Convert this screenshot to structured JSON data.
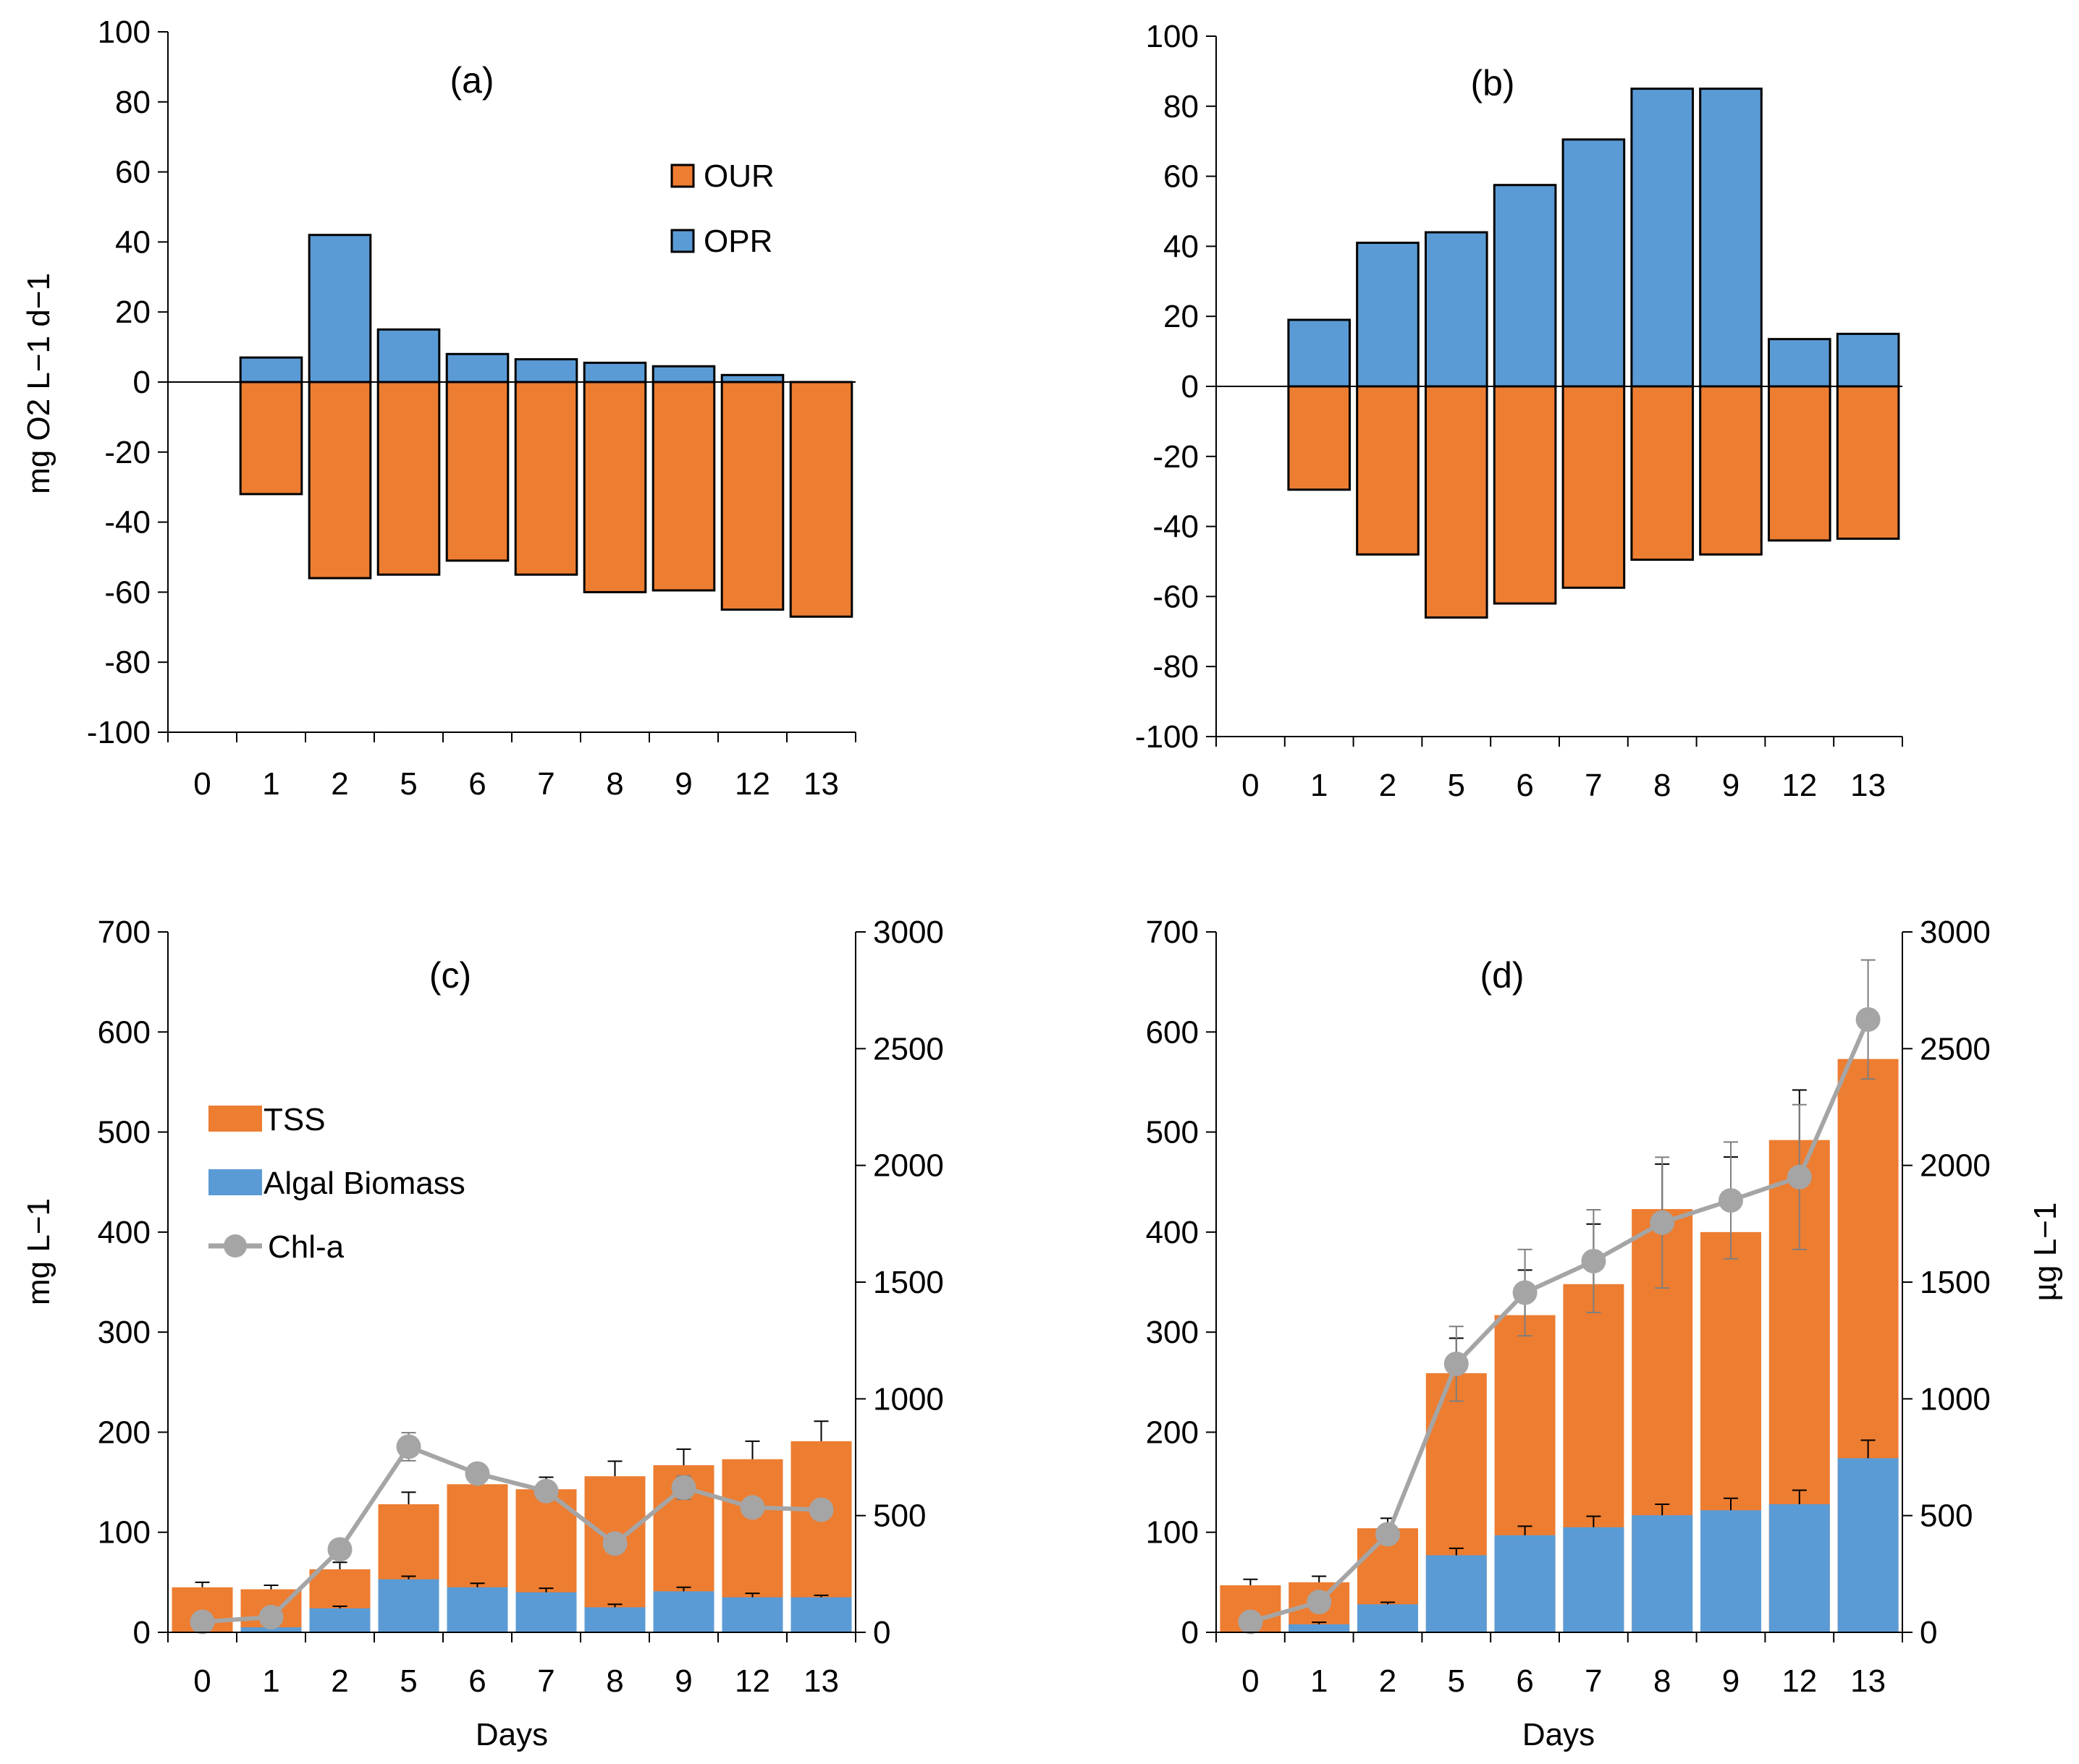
{
  "colors": {
    "orange": "#ED7D31",
    "blue": "#5B9BD5",
    "gray": "#A5A5A5",
    "axis": "#000000",
    "error": "#000000",
    "error_gray": "#7F7F7F"
  },
  "chart_data": [
    {
      "id": "a",
      "type": "bar",
      "stacking": "diverging",
      "panel_label": "(a)",
      "categories": [
        "0",
        "1",
        "2",
        "5",
        "6",
        "7",
        "8",
        "9",
        "12",
        "13"
      ],
      "ylabel": "mg O2 L−1 d−1",
      "ylim": [
        -100,
        100
      ],
      "yticks": [
        "100",
        "80",
        "60",
        "40",
        "20",
        "0",
        "-20",
        "-40",
        "-60",
        "-80",
        "-100"
      ],
      "legend": {
        "placement": "top-right",
        "entries": [
          "OUR",
          "OPR"
        ]
      },
      "series": [
        {
          "name": "OPR",
          "values": [
            null,
            7,
            42,
            15,
            8,
            6.5,
            5.5,
            4.5,
            2,
            0
          ]
        },
        {
          "name": "OUR",
          "values": [
            null,
            -32,
            -56,
            -55,
            -51,
            -55,
            -60,
            -59.5,
            -65,
            -67
          ]
        }
      ]
    },
    {
      "id": "b",
      "type": "bar",
      "stacking": "diverging",
      "panel_label": "(b)",
      "categories": [
        "0",
        "1",
        "2",
        "5",
        "6",
        "7",
        "8",
        "9",
        "12",
        "13"
      ],
      "ylim": [
        -100,
        100
      ],
      "yticks": [
        "100",
        "80",
        "60",
        "40",
        "20",
        "0",
        "-20",
        "-40",
        "-60",
        "-80",
        "-100"
      ],
      "series": [
        {
          "name": "OPR",
          "values": [
            null,
            19,
            41,
            44,
            57.5,
            70.5,
            85,
            85,
            13.5,
            15
          ]
        },
        {
          "name": "OUR",
          "values": [
            null,
            -29.5,
            -48,
            -66,
            -62,
            -57.5,
            -49.5,
            -48,
            -44,
            -43.5
          ]
        }
      ]
    },
    {
      "id": "c",
      "type": "bar",
      "stacking": "stacked",
      "panel_label": "(c)",
      "categories": [
        "0",
        "1",
        "2",
        "5",
        "6",
        "7",
        "8",
        "9",
        "12",
        "13"
      ],
      "xlabel": "Days",
      "ylabel": "mg L−1",
      "ylim": [
        0,
        700
      ],
      "yticks": [
        "700",
        "600",
        "500",
        "400",
        "300",
        "200",
        "100",
        "0"
      ],
      "y2lim": [
        0,
        3000
      ],
      "y2ticks": [
        "3000",
        "2500",
        "2000",
        "1500",
        "1000",
        "500",
        "0"
      ],
      "legend": {
        "placement": "middle-left",
        "entries": [
          "TSS",
          "Algal Biomass",
          "Chl-a"
        ]
      },
      "series": [
        {
          "name": "Algal Biomass",
          "values": [
            0,
            5,
            24,
            53,
            45,
            40,
            25,
            41,
            35,
            35
          ]
        },
        {
          "name": "TSS",
          "values": [
            45,
            43,
            63,
            128,
            148,
            143,
            156,
            167,
            173,
            191
          ]
        },
        {
          "name": "Chl-a",
          "axis": "secondary",
          "values": [
            45,
            65,
            355,
            795,
            680,
            605,
            380,
            620,
            535,
            525
          ]
        }
      ],
      "errors_tss": [
        5,
        4,
        7,
        12,
        10,
        12,
        15,
        16,
        18,
        20
      ],
      "errors_algal": [
        0,
        0,
        2,
        3,
        4,
        4,
        3,
        4,
        4,
        2
      ],
      "errors_chla": [
        0,
        0,
        0,
        60,
        35,
        40,
        0,
        50,
        0,
        0
      ]
    },
    {
      "id": "d",
      "type": "bar",
      "stacking": "stacked",
      "panel_label": "(d)",
      "categories": [
        "0",
        "1",
        "2",
        "5",
        "6",
        "7",
        "8",
        "9",
        "12",
        "13"
      ],
      "xlabel": "Days",
      "y2label": "µg L−1",
      "ylim": [
        0,
        700
      ],
      "yticks": [
        "700",
        "600",
        "500",
        "400",
        "300",
        "200",
        "100",
        "0"
      ],
      "y2lim": [
        0,
        3000
      ],
      "y2ticks": [
        "3000",
        "2500",
        "2000",
        "1500",
        "1000",
        "500",
        "0"
      ],
      "series": [
        {
          "name": "Algal Biomass",
          "values": [
            0,
            8,
            28,
            77,
            97,
            105,
            117,
            122,
            128,
            174
          ]
        },
        {
          "name": "TSS",
          "values": [
            47,
            50,
            104,
            259,
            317,
            348,
            423,
            400,
            492,
            573
          ]
        },
        {
          "name": "Chl-a",
          "axis": "secondary",
          "values": [
            45,
            130,
            420,
            1150,
            1455,
            1590,
            1755,
            1850,
            1950,
            2625
          ]
        }
      ],
      "errors_tss": [
        6,
        6,
        10,
        35,
        45,
        60,
        45,
        75,
        50,
        0
      ],
      "errors_algal": [
        0,
        2,
        2,
        7,
        9,
        11,
        11,
        12,
        14,
        18
      ],
      "errors_chla": [
        0,
        0,
        0,
        160,
        185,
        220,
        280,
        250,
        310,
        255
      ]
    }
  ]
}
